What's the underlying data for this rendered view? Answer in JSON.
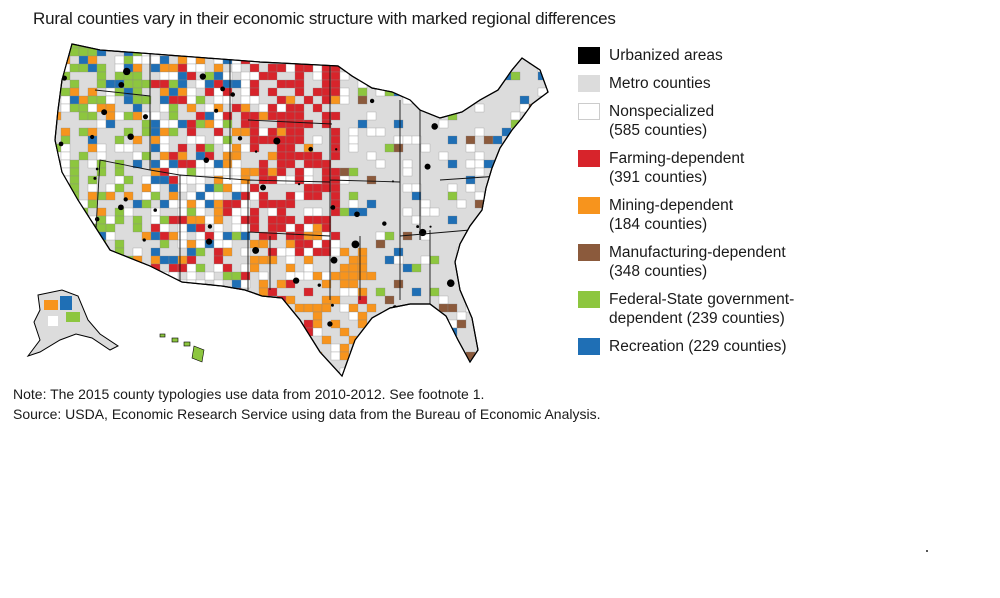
{
  "title": "Rural counties vary in their economic structure with marked regional differences",
  "legend": [
    {
      "label": "Urbanized areas",
      "sub": "",
      "color": "#000000"
    },
    {
      "label": "Metro counties",
      "sub": "",
      "color": "#dcdcdc"
    },
    {
      "label": "Nonspecialized",
      "sub": "(585 counties)",
      "color": "#ffffff"
    },
    {
      "label": "Farming-dependent",
      "sub": "(391 counties)",
      "color": "#d7242b"
    },
    {
      "label": "Mining-dependent",
      "sub": "(184 counties)",
      "color": "#f7941d"
    },
    {
      "label": "Manufacturing-dependent",
      "sub": "(348 counties)",
      "color": "#8b5a3c"
    },
    {
      "label": "Federal-State government-",
      "sub": "dependent (239 counties)",
      "color": "#8dc63f"
    },
    {
      "label": "Recreation (229 counties)",
      "sub": "",
      "color": "#1f6fb5"
    }
  ],
  "note": "Note: The 2015 county typologies use data from 2010-2012. See footnote 1.",
  "source": "Source: USDA, Economic Research Service using data from the Bureau of Economic Analysis."
}
